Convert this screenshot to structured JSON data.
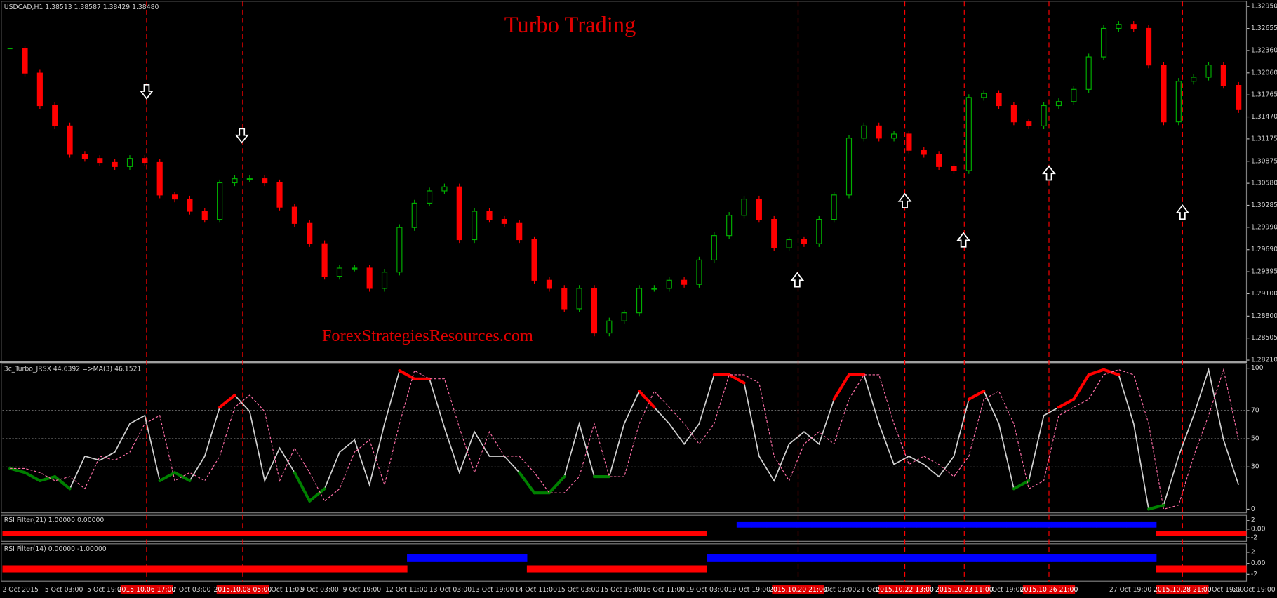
{
  "chart_data": [
    {
      "type": "candlestick",
      "title": "USDCAD,H1  1.38513 1.38587 1.38429 1.38480",
      "annotations": [
        "Turbo Trading",
        "ForexStrategiesResources.com"
      ],
      "up_color": "#00b000",
      "down_color": "#ff0000",
      "values": [
        1.32383,
        1.32057,
        1.31621,
        1.31349,
        1.30968,
        1.30913,
        1.30859,
        1.30804,
        1.30913,
        1.30859,
        1.30423,
        1.30369,
        1.30205,
        1.30096,
        1.30586,
        1.30641,
        1.30641,
        1.30586,
        1.3026,
        1.30042,
        1.2977,
        1.29334,
        1.29443,
        1.29443,
        1.29171,
        1.29389,
        1.29987,
        1.30314,
        1.30478,
        1.30532,
        1.29824,
        1.30205,
        1.30096,
        1.30042,
        1.29824,
        1.2928,
        1.29171,
        1.28898,
        1.29171,
        1.28572,
        1.28735,
        1.28844,
        1.29171,
        1.29171,
        1.2928,
        1.29225,
        1.29552,
        1.29879,
        1.30151,
        1.30369,
        1.30096,
        1.29715,
        1.29824,
        1.2977,
        1.30096,
        1.30423,
        1.31185,
        1.31349,
        1.31185,
        1.3124,
        1.31022,
        1.30968,
        1.30804,
        1.3075,
        1.3173,
        1.31784,
        1.31621,
        1.31403,
        1.31349,
        1.31621,
        1.31675,
        1.31839,
        1.32274,
        1.32656,
        1.3271,
        1.32656,
        1.32165,
        1.31403,
        1.31948,
        1.32002,
        1.32165,
        1.31893,
        1.31567
      ],
      "ylim": [
        1.28199,
        1.33004
      ],
      "yticks": [
        {
          "value": 1.3295,
          "label": "1.32950"
        },
        1.32655,
        {
          "value": 1.3236,
          "label": "1.32360"
        },
        {
          "value": 1.3206,
          "label": "1.32060"
        },
        1.31765,
        {
          "value": 1.3147,
          "label": "1.31470"
        },
        1.31175,
        1.30875,
        {
          "value": 1.3058,
          "label": "1.30580"
        },
        1.30285,
        {
          "value": 1.2999,
          "label": "1.29990"
        },
        {
          "value": 1.2969,
          "label": "1.29690"
        },
        1.29395,
        {
          "value": 1.291,
          "label": "1.29100"
        },
        {
          "value": 1.288,
          "label": "1.28800"
        },
        1.28505,
        {
          "value": 1.2821,
          "label": "1.28210"
        }
      ],
      "grid": false
    },
    {
      "type": "line",
      "title": "3c_Turbo_JRSX 44.6392  =>MA(3) 46.1521",
      "overbought_level": 70,
      "oversold_level": 30,
      "series": [
        {
          "color": "#d0d0d0",
          "style": "solid",
          "overbought_color": "#ff0000",
          "oversold_color": "#008000",
          "values": [
            28.9,
            26.0,
            20.2,
            23.1,
            14.5,
            37.6,
            34.7,
            40.5,
            60.7,
            66.5,
            20.2,
            26.0,
            20.2,
            37.6,
            72.3,
            80.9,
            69.4,
            20.2,
            43.4,
            26.0,
            5.8,
            14.5,
            40.5,
            49.1,
            17.3,
            60.7,
            98.3,
            92.5,
            92.5,
            57.8,
            26.0,
            54.9,
            37.6,
            37.6,
            26.0,
            11.6,
            11.6,
            23.1,
            60.7,
            23.1,
            23.1,
            60.7,
            83.8,
            72.3,
            60.7,
            46.2,
            60.7,
            95.4,
            95.4,
            89.6,
            37.6,
            20.2,
            46.2,
            54.9,
            46.2,
            78.0,
            95.4,
            95.4,
            60.7,
            31.8,
            37.6,
            31.8,
            23.1,
            37.6,
            78.0,
            83.8,
            60.7,
            14.5,
            20.2,
            66.5,
            72.3,
            78.0,
            95.4,
            99.0,
            95.4,
            60.7,
            0,
            2.9,
            37.6,
            66.5,
            99.0,
            49.1,
            17.3
          ]
        },
        {
          "color": "#ff6fa8",
          "style": "dashed",
          "values": [
            28.9,
            28.9,
            26.0,
            20.2,
            23.1,
            14.5,
            37.6,
            34.7,
            40.5,
            60.7,
            66.5,
            20.2,
            26.0,
            20.2,
            37.6,
            72.3,
            80.9,
            69.4,
            20.2,
            43.4,
            26.0,
            5.8,
            14.5,
            40.5,
            49.1,
            17.3,
            60.7,
            98.3,
            92.5,
            92.5,
            57.8,
            26.0,
            54.9,
            37.6,
            37.6,
            26.0,
            11.6,
            11.6,
            23.1,
            60.7,
            23.1,
            23.1,
            60.7,
            83.8,
            72.3,
            60.7,
            46.2,
            60.7,
            95.4,
            95.4,
            89.6,
            37.6,
            20.2,
            46.2,
            54.9,
            46.2,
            78.0,
            95.4,
            95.4,
            60.7,
            31.8,
            37.6,
            31.8,
            23.1,
            37.6,
            78.0,
            83.8,
            60.7,
            14.5,
            20.2,
            66.5,
            72.3,
            78.0,
            95.4,
            99.0,
            95.4,
            60.7,
            0,
            2.9,
            37.6,
            66.5,
            99.0,
            49.1
          ]
        }
      ],
      "ylim": [
        0,
        100
      ],
      "yticks": [
        0,
        30,
        50,
        70,
        100
      ],
      "grid": true
    },
    {
      "type": "bar",
      "title": "RSI Filter(21) 1.00000 0.00000",
      "up_color": "#0000ff",
      "down_color": "#ff0000",
      "values": [
        -1,
        -1,
        -1,
        -1,
        -1,
        -1,
        -1,
        -1,
        -1,
        -1,
        -1,
        -1,
        -1,
        -1,
        -1,
        -1,
        -1,
        -1,
        -1,
        -1,
        -1,
        -1,
        -1,
        -1,
        -1,
        -1,
        -1,
        -1,
        -1,
        -1,
        -1,
        -1,
        -1,
        -1,
        -1,
        -1,
        -1,
        -1,
        -1,
        -1,
        -1,
        -1,
        -1,
        -1,
        -1,
        -1,
        -1,
        null,
        null,
        1,
        1,
        1,
        1,
        1,
        1,
        1,
        1,
        1,
        1,
        1,
        1,
        1,
        1,
        1,
        1,
        1,
        1,
        1,
        1,
        1,
        1,
        1,
        1,
        1,
        1,
        1,
        1,
        -1,
        -1,
        -1,
        -1,
        -1,
        -1
      ],
      "ylim": [
        -2,
        2
      ],
      "yticks": [
        2,
        {
          "value": 0,
          "label": "0.00"
        },
        -2
      ],
      "grid": false
    },
    {
      "type": "bar",
      "title": "RSI Filter(14) 0.00000 -1.00000",
      "up_color": "#0000ff",
      "down_color": "#ff0000",
      "values": [
        -1,
        -1,
        -1,
        -1,
        -1,
        -1,
        -1,
        -1,
        -1,
        -1,
        -1,
        -1,
        -1,
        -1,
        -1,
        -1,
        -1,
        -1,
        -1,
        -1,
        -1,
        -1,
        -1,
        -1,
        -1,
        -1,
        -1,
        1,
        1,
        1,
        1,
        1,
        1,
        1,
        1,
        -1,
        -1,
        -1,
        -1,
        -1,
        -1,
        -1,
        -1,
        -1,
        -1,
        -1,
        -1,
        1,
        1,
        1,
        1,
        1,
        1,
        1,
        1,
        1,
        1,
        1,
        1,
        1,
        1,
        1,
        1,
        1,
        1,
        1,
        1,
        1,
        1,
        1,
        1,
        1,
        1,
        1,
        1,
        1,
        1,
        -1,
        -1,
        -1,
        -1,
        -1,
        -1
      ],
      "ylim": [
        -2,
        2
      ],
      "yticks": [
        2,
        {
          "value": 0,
          "label": "0.00"
        },
        -2
      ],
      "grid": false
    }
  ],
  "time_axis": {
    "labels": [
      "2 Oct 2015",
      "5 Oct 03:00",
      "5 Oct 19:00",
      "7 Oct 03:00",
      "Oct 11:00",
      "9 Oct 03:00",
      "9 Oct 19:00",
      "12 Oct 11:00",
      "13 Oct 03:00",
      "13 Oct 19:00",
      "14 Oct 11:00",
      "15 Oct 03:00",
      "15 Oct 19:00",
      "16 Oct 11:00",
      "19 Oct 03:00",
      "19 Oct 19:00",
      "Oct 03:00",
      "21 Oct 19:00",
      "Oct 19:00",
      "27 Oct 19:00",
      "Oct 19:00",
      "29 Oct 19:00"
    ],
    "signal_labels": [
      "2015.10.06 17:00",
      "2015.10.08 05:00",
      "2015.10.20 21:00",
      "2015.10.22 13:00",
      "2015.10.23 11:00",
      "2015.10.26 21:00",
      "2015.10.28 21:00"
    ]
  }
}
